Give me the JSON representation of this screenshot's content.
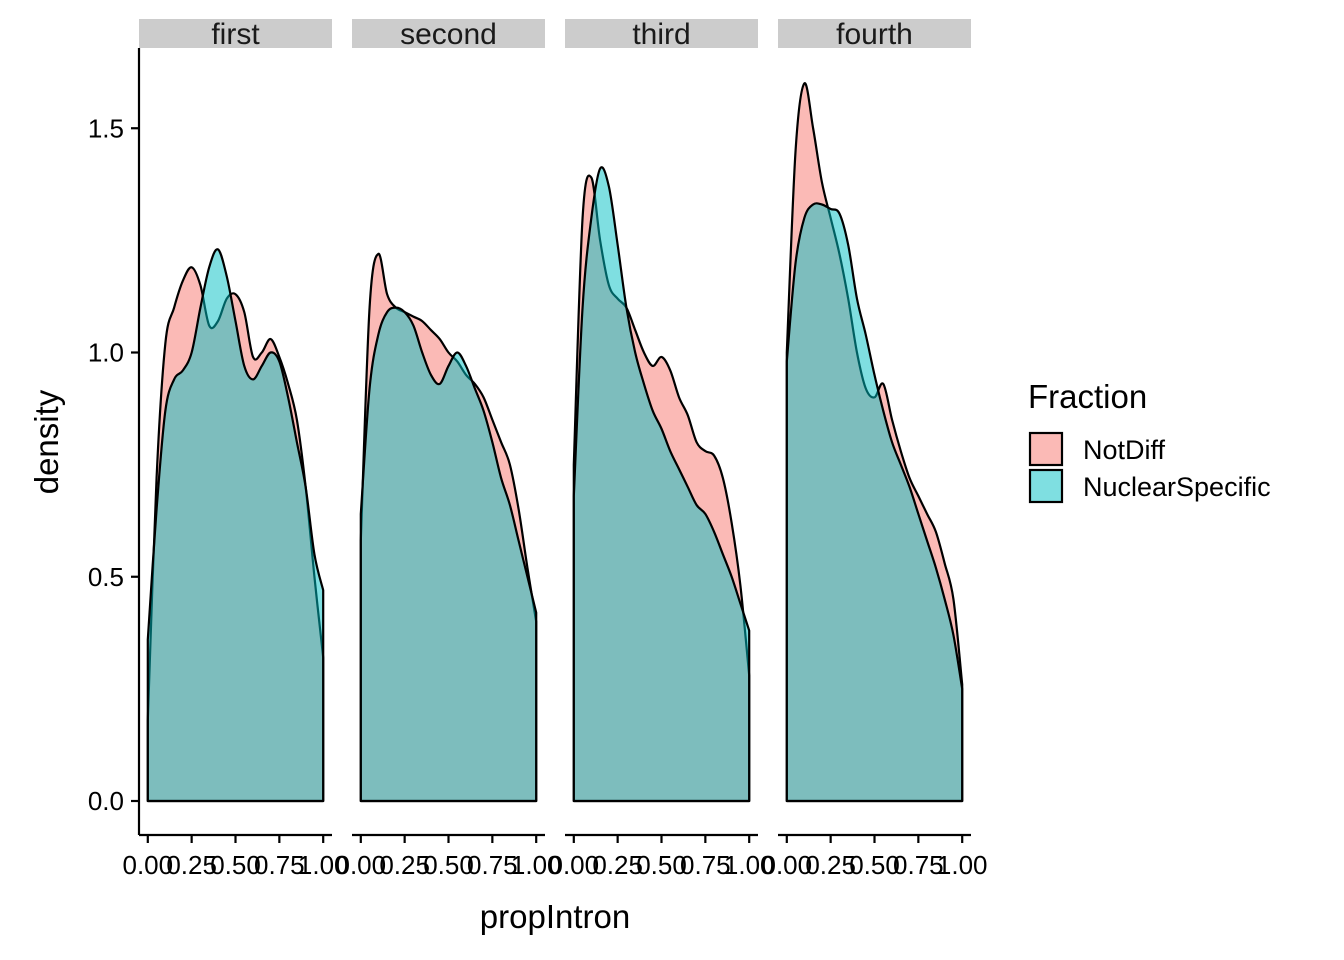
{
  "chart_data": {
    "type": "area",
    "chart_kind": "faceted-density",
    "xlabel": "propIntron",
    "ylabel": "density",
    "xlim": [
      0,
      1
    ],
    "ylim": [
      0,
      1.65
    ],
    "x_ticks": [
      "0.00",
      "0.25",
      "0.50",
      "0.75",
      "1.00"
    ],
    "y_ticks": [
      "0.0",
      "0.5",
      "1.0",
      "1.5"
    ],
    "grid": false,
    "legend": {
      "title": "Fraction",
      "position": "right",
      "entries": [
        "NotDiff",
        "NuclearSpecific"
      ]
    },
    "colors": {
      "NotDiff": "#F8766D",
      "NuclearSpecific": "#00BFC4",
      "strip_bg": "#cccccc",
      "outline": "#000000"
    },
    "fill_opacity": 0.5,
    "x": [
      0,
      0.05,
      0.1,
      0.15,
      0.2,
      0.25,
      0.3,
      0.35,
      0.4,
      0.45,
      0.5,
      0.55,
      0.6,
      0.65,
      0.7,
      0.75,
      0.8,
      0.85,
      0.9,
      0.95,
      1.0
    ],
    "facets": [
      {
        "label": "first",
        "series": [
          {
            "name": "NotDiff",
            "values": [
              0.18,
              0.72,
              1.02,
              1.1,
              1.16,
              1.19,
              1.15,
              1.06,
              1.07,
              1.12,
              1.13,
              1.09,
              0.99,
              1.0,
              1.03,
              0.99,
              0.93,
              0.85,
              0.7,
              0.5,
              0.32
            ]
          },
          {
            "name": "NuclearSpecific",
            "values": [
              0.36,
              0.65,
              0.87,
              0.94,
              0.96,
              1.0,
              1.1,
              1.19,
              1.23,
              1.17,
              1.07,
              0.97,
              0.94,
              0.97,
              1.0,
              0.98,
              0.9,
              0.8,
              0.7,
              0.55,
              0.47
            ]
          }
        ]
      },
      {
        "label": "second",
        "series": [
          {
            "name": "NotDiff",
            "values": [
              0.58,
              1.1,
              1.22,
              1.13,
              1.1,
              1.09,
              1.08,
              1.07,
              1.05,
              1.03,
              1.0,
              0.98,
              0.95,
              0.93,
              0.9,
              0.85,
              0.8,
              0.75,
              0.65,
              0.52,
              0.4
            ]
          },
          {
            "name": "NuclearSpecific",
            "values": [
              0.64,
              0.92,
              1.04,
              1.09,
              1.1,
              1.09,
              1.06,
              1.0,
              0.95,
              0.93,
              0.97,
              1.0,
              0.97,
              0.92,
              0.87,
              0.8,
              0.72,
              0.66,
              0.58,
              0.5,
              0.42
            ]
          }
        ]
      },
      {
        "label": "third",
        "series": [
          {
            "name": "NotDiff",
            "values": [
              0.75,
              1.3,
              1.39,
              1.25,
              1.15,
              1.12,
              1.1,
              1.05,
              1.0,
              0.97,
              0.99,
              0.96,
              0.9,
              0.86,
              0.8,
              0.78,
              0.77,
              0.72,
              0.62,
              0.48,
              0.28
            ]
          },
          {
            "name": "NuclearSpecific",
            "values": [
              0.68,
              1.1,
              1.3,
              1.41,
              1.37,
              1.24,
              1.1,
              1.0,
              0.93,
              0.87,
              0.83,
              0.78,
              0.74,
              0.7,
              0.66,
              0.64,
              0.6,
              0.55,
              0.5,
              0.44,
              0.38
            ]
          }
        ]
      },
      {
        "label": "fourth",
        "series": [
          {
            "name": "NotDiff",
            "values": [
              1.0,
              1.45,
              1.6,
              1.5,
              1.38,
              1.3,
              1.22,
              1.12,
              1.0,
              0.92,
              0.9,
              0.93,
              0.85,
              0.78,
              0.72,
              0.68,
              0.64,
              0.6,
              0.53,
              0.45,
              0.26
            ]
          },
          {
            "name": "NuclearSpecific",
            "values": [
              0.98,
              1.2,
              1.3,
              1.33,
              1.33,
              1.32,
              1.31,
              1.24,
              1.12,
              1.04,
              0.95,
              0.87,
              0.8,
              0.75,
              0.7,
              0.64,
              0.58,
              0.52,
              0.45,
              0.37,
              0.25
            ]
          }
        ]
      }
    ]
  }
}
